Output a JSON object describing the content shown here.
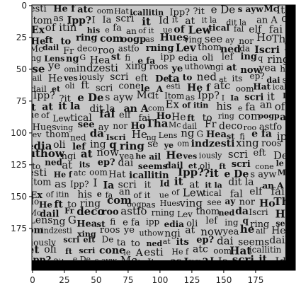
{
  "image": {
    "kind": "grayscale text-texture (plotted with axes)",
    "dominant_colors": {
      "background": "#c7c7c7",
      "ink": "#111111",
      "border": "#000000",
      "figure_bg": "#ffffff"
    },
    "x_ticks": [
      "0",
      "25",
      "50",
      "75",
      "100",
      "125",
      "150",
      "175"
    ],
    "y_ticks": [
      "0",
      "25",
      "50",
      "75",
      "100",
      "125",
      "150",
      "175"
    ],
    "text_fragments": [
      "esti",
      "He f",
      "atc",
      "oom",
      "Hat",
      "icallitin",
      "Ipp?",
      "?it",
      "e De",
      "s ayw",
      "Mc",
      "It",
      "Itom",
      "as",
      "Ipp?",
      "I",
      "Ia",
      "scri",
      "it",
      "Id",
      "it",
      "at",
      "it la",
      "dit la",
      "an A",
      "com",
      "Ex",
      "of itin",
      "his",
      "e",
      "fa",
      "an",
      "of it",
      "ue",
      "of",
      "Lew",
      "tical",
      "fal",
      "elf",
      "fai",
      "Ho",
      "He",
      "ft",
      "to",
      "ring",
      "com",
      "oogp",
      "as",
      "Hues",
      "ving",
      "see",
      "ay",
      "nor",
      "Ho",
      "Tha",
      "Mc",
      "dail",
      "Fr",
      "deco",
      "roo",
      "astfo",
      "rning",
      "Lev",
      "thom",
      "ned",
      "da",
      "Iscri",
      "He",
      "ng",
      "Lens",
      "ng",
      "G",
      "Hea",
      "st",
      "fi",
      "e fa",
      "ipp",
      "edia",
      "oli",
      "lef",
      "ing",
      "q",
      "ring",
      "se",
      "ye",
      "om",
      "indzesti",
      "xing",
      "roos",
      "ye",
      "uthow",
      "ngi",
      "at",
      "now",
      "yea",
      "he",
      "ail",
      "He",
      "ves",
      "iously",
      "scri",
      "eft",
      "De",
      "ta",
      "to",
      "ned",
      "at",
      "its",
      "ep?",
      "dai",
      "seems",
      "dail",
      "et",
      "oli",
      "ft",
      "scri",
      "cone",
      "le",
      "A"
    ]
  }
}
